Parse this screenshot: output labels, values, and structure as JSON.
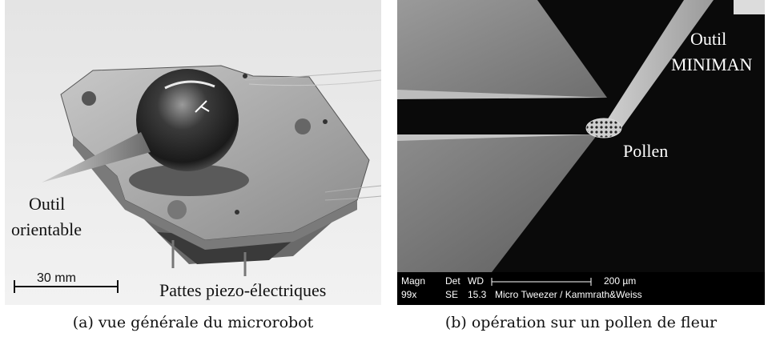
{
  "figure": {
    "panel_a": {
      "photo_labels": {
        "tool": [
          "Outil",
          "orientable"
        ],
        "legs": "Pattes piezo-électriques",
        "scale": "30 mm"
      },
      "caption": "(a) vue générale du microrobot"
    },
    "panel_b": {
      "photo_labels": {
        "tool": [
          "Outil",
          "MINIMAN"
        ],
        "pollen": "Pollen"
      },
      "sem_databar": {
        "row1": [
          "Magn",
          "Det",
          "WD",
          "200 µm"
        ],
        "row2": [
          "99x",
          "SE",
          "15.3",
          "Micro Tweezer / Kammrath&Weiss"
        ]
      },
      "caption": "(b) opération sur un pollen de fleur"
    }
  }
}
